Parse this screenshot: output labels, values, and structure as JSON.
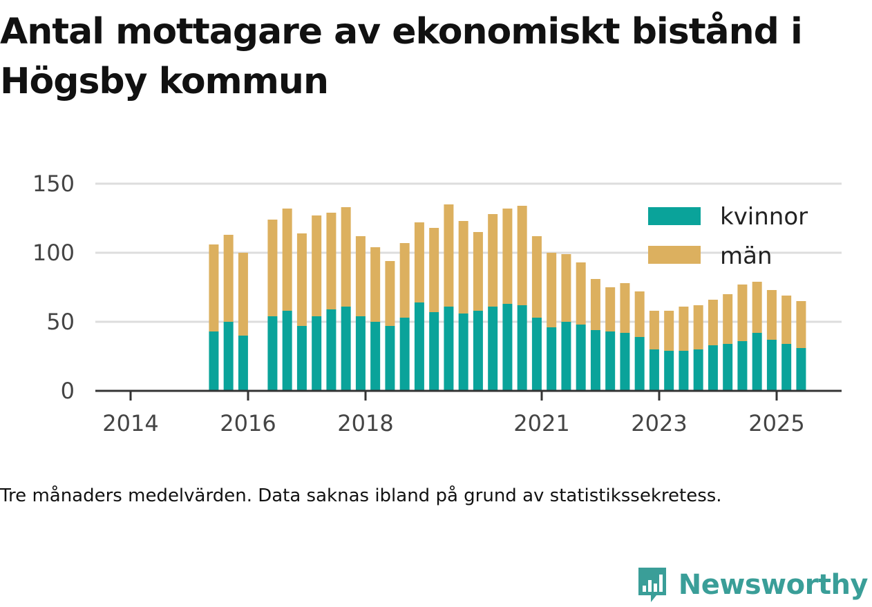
{
  "title": "Antal mottagare av ekonomiskt bistånd i Högsby kommun",
  "caption": "Tre månaders medelvärden. Data saknas ibland på grund av statistikssekretess.",
  "brand": {
    "name": "Newsworthy",
    "icon": "newsworthy-logo-icon",
    "color": "#3a9e98"
  },
  "chart_data": {
    "type": "bar",
    "stacked": true,
    "ylim": [
      0,
      150
    ],
    "yticks": [
      0,
      50,
      100,
      150
    ],
    "xticks": [
      "2014",
      "2016",
      "2018",
      "2021",
      "2023",
      "2025"
    ],
    "grid": true,
    "legend_position": "top-right",
    "colors": {
      "kvinnor": "#0aa39a",
      "män": "#dcb05f"
    },
    "series": [
      {
        "name": "kvinnor",
        "values": [
          43,
          50,
          40,
          54,
          58,
          47,
          54,
          59,
          61,
          54,
          50,
          47,
          53,
          64,
          57,
          61,
          56,
          58,
          61,
          63,
          62,
          53,
          46,
          50,
          48,
          44,
          43,
          42,
          39,
          30,
          29,
          29,
          30,
          33,
          34,
          36,
          42,
          37,
          34,
          31
        ]
      },
      {
        "name": "män",
        "values": [
          63,
          63,
          60,
          70,
          74,
          67,
          73,
          70,
          72,
          58,
          54,
          47,
          54,
          58,
          61,
          74,
          67,
          57,
          67,
          69,
          72,
          59,
          54,
          49,
          45,
          37,
          32,
          36,
          33,
          28,
          29,
          32,
          32,
          33,
          36,
          41,
          37,
          36,
          35,
          34
        ]
      }
    ],
    "x": [
      "2015-06",
      "2015-09",
      "2015-12",
      "2016-06",
      "2016-09",
      "2016-12",
      "2017-03",
      "2017-06",
      "2017-09",
      "2017-12",
      "2018-03",
      "2018-06",
      "2018-09",
      "2018-12",
      "2019-03",
      "2019-06",
      "2019-09",
      "2019-12",
      "2020-03",
      "2020-06",
      "2020-09",
      "2020-12",
      "2021-03",
      "2021-06",
      "2021-09",
      "2021-12",
      "2022-03",
      "2022-06",
      "2022-09",
      "2022-12",
      "2023-03",
      "2023-06",
      "2023-09",
      "2023-12",
      "2024-03",
      "2024-06",
      "2024-09",
      "2024-12",
      "2025-03",
      "2025-06"
    ]
  }
}
